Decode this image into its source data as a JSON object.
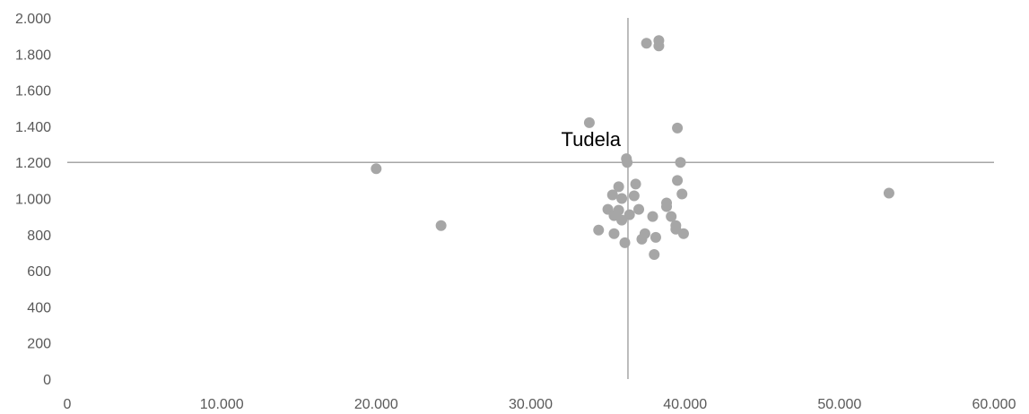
{
  "chart_data": {
    "type": "scatter",
    "title": "",
    "xlabel": "",
    "ylabel": "",
    "xlim": [
      0,
      60000
    ],
    "ylim": [
      0,
      2000
    ],
    "x_ticks": [
      0,
      10000,
      20000,
      30000,
      40000,
      50000,
      60000
    ],
    "x_tick_labels": [
      "0",
      "10.000",
      "20.000",
      "30.000",
      "40.000",
      "50.000",
      "60.000"
    ],
    "y_ticks": [
      0,
      200,
      400,
      600,
      800,
      1000,
      1200,
      1400,
      1600,
      1800,
      2000
    ],
    "y_tick_labels": [
      "0",
      "200",
      "400",
      "600",
      "800",
      "1.000",
      "1.200",
      "1.400",
      "1.600",
      "1.800",
      "2.000"
    ],
    "grid": false,
    "reference_lines": {
      "x": 36300,
      "y": 1200
    },
    "annotations": [
      {
        "text": "Tudela",
        "x": 36300,
        "y": 1210
      }
    ],
    "colors": {
      "points": "#a6a6a6",
      "reference_lines": "#a6a6a6",
      "tick_labels": "#595959"
    },
    "series": [
      {
        "points": [
          [
            20000,
            1165
          ],
          [
            24200,
            850
          ],
          [
            53200,
            1030
          ],
          [
            37500,
            1860
          ],
          [
            38300,
            1875
          ],
          [
            38300,
            1845
          ],
          [
            33800,
            1420
          ],
          [
            39500,
            1390
          ],
          [
            36200,
            1220
          ],
          [
            36250,
            1200
          ],
          [
            39700,
            1200
          ],
          [
            39500,
            1100
          ],
          [
            36800,
            1080
          ],
          [
            35700,
            1065
          ],
          [
            39800,
            1025
          ],
          [
            35300,
            1020
          ],
          [
            36700,
            1015
          ],
          [
            35900,
            1000
          ],
          [
            38800,
            975
          ],
          [
            38800,
            955
          ],
          [
            35000,
            940
          ],
          [
            37000,
            940
          ],
          [
            35700,
            935
          ],
          [
            39100,
            900
          ],
          [
            36400,
            910
          ],
          [
            35400,
            905
          ],
          [
            37900,
            900
          ],
          [
            35900,
            880
          ],
          [
            39400,
            850
          ],
          [
            39400,
            830
          ],
          [
            34400,
            825
          ],
          [
            35400,
            805
          ],
          [
            37400,
            805
          ],
          [
            39900,
            805
          ],
          [
            38100,
            785
          ],
          [
            37200,
            775
          ],
          [
            36100,
            755
          ],
          [
            38000,
            690
          ]
        ]
      }
    ]
  }
}
